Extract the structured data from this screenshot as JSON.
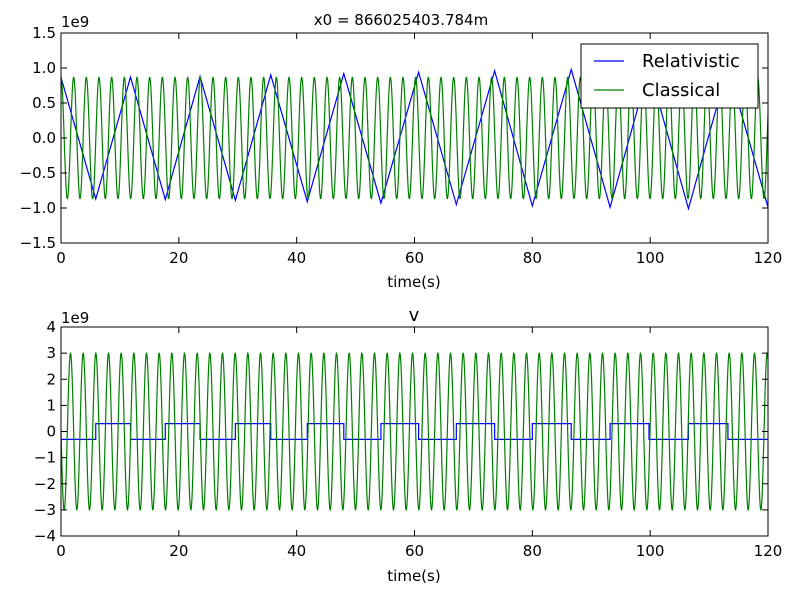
{
  "chart_data": [
    {
      "type": "line",
      "title": "x0 = 866025403.784m",
      "xlabel": "time(s)",
      "ylabel": "",
      "offset_text": "1e9",
      "xlim": [
        0,
        120
      ],
      "ylim": [
        -1.5,
        1.5
      ],
      "xticks": [
        0,
        20,
        40,
        60,
        80,
        100,
        120
      ],
      "yticks": [
        -1.5,
        -1.0,
        -0.5,
        0.0,
        0.5,
        1.0,
        1.5
      ],
      "xtick_labels": [
        "0",
        "20",
        "40",
        "60",
        "80",
        "100",
        "120"
      ],
      "ytick_labels": [
        "−1.5",
        "−1.0",
        "−0.5",
        "0.0",
        "0.5",
        "1.0",
        "1.5"
      ],
      "grid": false,
      "legend": {
        "position": "top-right",
        "entries": [
          "Relativistic",
          "Classical"
        ]
      },
      "series": [
        {
          "name": "Relativistic",
          "color": "#0000ff",
          "x": [
            0,
            5.9,
            11.8,
            17.7,
            23.6,
            29.6,
            35.6,
            41.8,
            48.0,
            54.3,
            60.7,
            67.1,
            73.6,
            80.0,
            86.6,
            93.2,
            99.8,
            106.5,
            113.2,
            120
          ],
          "y": [
            0.866,
            -0.87,
            0.87,
            -0.88,
            0.88,
            -0.89,
            0.9,
            -0.91,
            0.92,
            -0.93,
            0.94,
            -0.95,
            0.96,
            -0.97,
            0.98,
            -0.99,
            1.0,
            -1.01,
            1.02,
            -0.99
          ]
        },
        {
          "name": "Classical",
          "color": "#008000",
          "amplitude": 0.866,
          "period": 2.15,
          "phase": "cosine",
          "x_range": [
            0,
            120
          ]
        }
      ]
    },
    {
      "type": "line",
      "title": "v",
      "xlabel": "time(s)",
      "ylabel": "",
      "offset_text": "1e9",
      "xlim": [
        0,
        120
      ],
      "ylim": [
        -4,
        4
      ],
      "xticks": [
        0,
        20,
        40,
        60,
        80,
        100,
        120
      ],
      "yticks": [
        -4,
        -3,
        -2,
        -1,
        0,
        1,
        2,
        3,
        4
      ],
      "xtick_labels": [
        "0",
        "20",
        "40",
        "60",
        "80",
        "100",
        "120"
      ],
      "ytick_labels": [
        "−4",
        "−3",
        "−2",
        "−1",
        "0",
        "1",
        "2",
        "3",
        "4"
      ],
      "grid": false,
      "series": [
        {
          "name": "Relativistic",
          "color": "#0000ff",
          "step_levels": [
            -0.3,
            0.3
          ],
          "switch_times": [
            5.9,
            11.8,
            17.7,
            23.6,
            29.6,
            35.6,
            41.8,
            48.0,
            54.3,
            60.7,
            67.1,
            73.6,
            80.0,
            86.6,
            93.2,
            99.8,
            106.5,
            113.2
          ],
          "start_level": -0.3,
          "x_range": [
            0,
            120
          ]
        },
        {
          "name": "Classical",
          "color": "#008000",
          "amplitude": 3.0,
          "period": 2.15,
          "phase": "negative-sine",
          "x_range": [
            0,
            120
          ]
        }
      ]
    }
  ]
}
